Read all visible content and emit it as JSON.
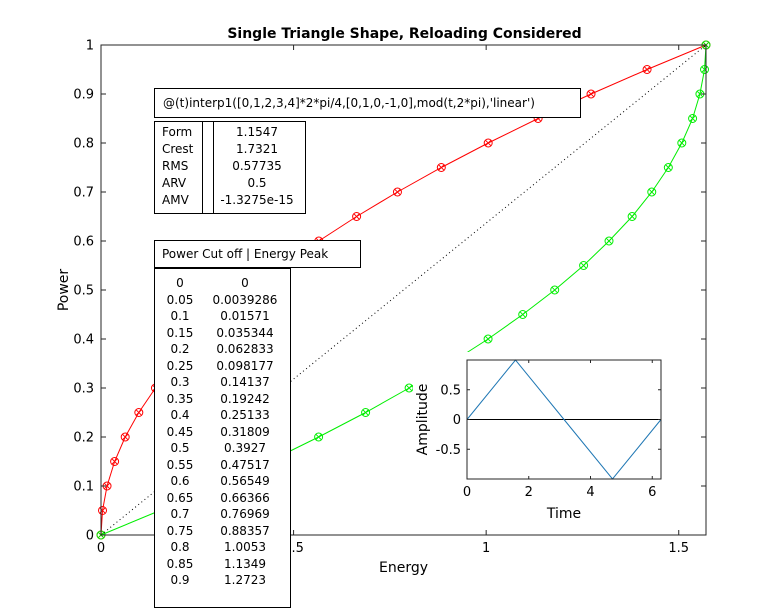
{
  "chart_data": [
    {
      "type": "line",
      "title": "Single Triangle Shape, Reloading Considered",
      "xlabel": "Energy",
      "ylabel": "Power",
      "xlim": [
        0,
        1.5708
      ],
      "ylim": [
        0,
        1
      ],
      "xticks": [
        0,
        0.5,
        1,
        1.5
      ],
      "xtick_labels": [
        "0",
        "0.5",
        "1",
        "1.5"
      ],
      "yticks": [
        0,
        0.1,
        0.2,
        0.3,
        0.4,
        0.5,
        0.6,
        0.7,
        0.8,
        0.9,
        1
      ],
      "ytick_labels": [
        "0",
        "0.1",
        "0.2",
        "0.3",
        "0.4",
        "0.5",
        "0.6",
        "0.7",
        "0.8",
        "0.9",
        "1"
      ],
      "grid": false,
      "series": [
        {
          "color": "#ff0000",
          "marker": "circle-x",
          "x": [
            0,
            0.0039286,
            0.01571,
            0.035344,
            0.062833,
            0.098177,
            0.14137,
            0.19242,
            0.25133,
            0.31809,
            0.3927,
            0.47517,
            0.56549,
            0.66366,
            0.76969,
            0.88357,
            1.0053,
            1.1349,
            1.2723,
            1.4178,
            1.5708
          ],
          "y": [
            0,
            0.05,
            0.1,
            0.15,
            0.2,
            0.25,
            0.3,
            0.35,
            0.4,
            0.45,
            0.5,
            0.55,
            0.6,
            0.65,
            0.7,
            0.75,
            0.8,
            0.85,
            0.9,
            0.95,
            1
          ]
        },
        {
          "color": "#00ee00",
          "marker": "circle-x",
          "x": [
            0,
            0.153,
            0.298,
            0.436,
            0.565,
            0.687,
            0.8,
            0.906,
            1.005,
            1.095,
            1.178,
            1.253,
            1.319,
            1.379,
            1.43,
            1.473,
            1.508,
            1.536,
            1.555,
            1.567,
            1.5708
          ],
          "y": [
            0,
            0.05,
            0.1,
            0.15,
            0.2,
            0.25,
            0.3,
            0.35,
            0.4,
            0.45,
            0.5,
            0.55,
            0.6,
            0.65,
            0.7,
            0.75,
            0.8,
            0.85,
            0.9,
            0.95,
            1
          ]
        },
        {
          "color": "#000000",
          "style": "dotted",
          "x": [
            0,
            1.5708
          ],
          "y": [
            0,
            1
          ]
        }
      ]
    },
    {
      "type": "line",
      "xlabel": "Time",
      "ylabel": "Amplitude",
      "xlim": [
        0,
        6.2832
      ],
      "ylim": [
        -1,
        1
      ],
      "xticks": [
        0,
        2,
        4,
        6
      ],
      "xtick_labels": [
        "0",
        "2",
        "4",
        "6"
      ],
      "yticks": [
        -0.5,
        0,
        0.5
      ],
      "ytick_labels": [
        "-0.5",
        "0",
        "0.5"
      ],
      "series": [
        {
          "color": "#1f77b4",
          "x": [
            0,
            1.5708,
            3.1416,
            4.7124,
            6.2832
          ],
          "y": [
            0,
            1,
            0,
            -1,
            0
          ]
        }
      ],
      "zero_line": {
        "color": "#000000",
        "y": 0
      }
    }
  ],
  "expression": "@(t)interp1([0,1,2,3,4]*2*pi/4,[0,1,0,-1,0],mod(t,2*pi),'linear')",
  "stats": [
    {
      "label": "Form",
      "value": "1.1547"
    },
    {
      "label": "Crest",
      "value": "1.7321"
    },
    {
      "label": "RMS",
      "value": "0.57735"
    },
    {
      "label": "ARV",
      "value": "0.5"
    },
    {
      "label": "AMV",
      "value": "-1.3275e-15"
    }
  ],
  "power_table_header": "Power Cut off | Energy Peak",
  "power_table": [
    [
      "0",
      "0"
    ],
    [
      "0.05",
      "0.0039286"
    ],
    [
      "0.1",
      "0.01571"
    ],
    [
      "0.15",
      "0.035344"
    ],
    [
      "0.2",
      "0.062833"
    ],
    [
      "0.25",
      "0.098177"
    ],
    [
      "0.3",
      "0.14137"
    ],
    [
      "0.35",
      "0.19242"
    ],
    [
      "0.4",
      "0.25133"
    ],
    [
      "0.45",
      "0.31809"
    ],
    [
      "0.5",
      "0.3927"
    ],
    [
      "0.55",
      "0.47517"
    ],
    [
      "0.6",
      "0.56549"
    ],
    [
      "0.65",
      "0.66366"
    ],
    [
      "0.7",
      "0.76969"
    ],
    [
      "0.75",
      "0.88357"
    ],
    [
      "0.8",
      "1.0053"
    ],
    [
      "0.85",
      "1.1349"
    ],
    [
      "0.9",
      "1.2723"
    ]
  ]
}
